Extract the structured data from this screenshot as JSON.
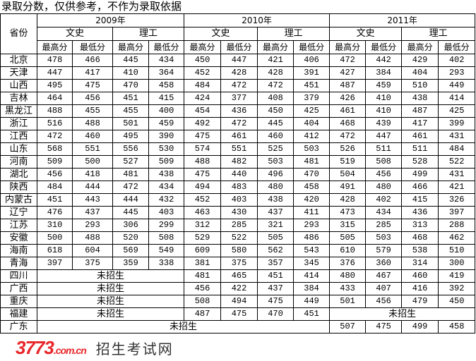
{
  "title": "录取分数，仅供参考，不作为录取依据",
  "header": {
    "province": "省份",
    "years": [
      "2009年",
      "2010年",
      "2011年"
    ],
    "tracks": [
      "文史",
      "理工"
    ],
    "scores": [
      "最高分",
      "最低分"
    ]
  },
  "not_enrolled": "未招生",
  "rows": [
    {
      "province": "北京",
      "values": [
        478,
        466,
        445,
        434,
        450,
        447,
        421,
        406,
        472,
        442,
        429,
        402
      ]
    },
    {
      "province": "天津",
      "values": [
        447,
        417,
        410,
        364,
        452,
        428,
        428,
        391,
        427,
        384,
        404,
        293
      ]
    },
    {
      "province": "山西",
      "values": [
        495,
        475,
        470,
        458,
        484,
        472,
        472,
        451,
        487,
        459,
        510,
        449
      ]
    },
    {
      "province": "吉林",
      "values": [
        464,
        456,
        451,
        415,
        424,
        377,
        408,
        379,
        426,
        410,
        438,
        414
      ]
    },
    {
      "province": "黑龙江",
      "values": [
        488,
        455,
        455,
        400,
        454,
        436,
        450,
        425,
        461,
        410,
        487,
        425
      ]
    },
    {
      "province": "浙江",
      "values": [
        516,
        488,
        501,
        459,
        492,
        472,
        445,
        404,
        468,
        439,
        417,
        399
      ]
    },
    {
      "province": "江西",
      "values": [
        472,
        460,
        495,
        390,
        475,
        461,
        460,
        412,
        472,
        447,
        461,
        431
      ]
    },
    {
      "province": "山东",
      "values": [
        568,
        551,
        556,
        530,
        574,
        551,
        525,
        503,
        526,
        511,
        511,
        484
      ]
    },
    {
      "province": "河南",
      "values": [
        509,
        500,
        527,
        509,
        488,
        482,
        503,
        481,
        519,
        508,
        528,
        522
      ]
    },
    {
      "province": "湖北",
      "values": [
        456,
        418,
        481,
        438,
        475,
        440,
        496,
        470,
        504,
        456,
        499,
        431
      ]
    },
    {
      "province": "陕西",
      "values": [
        484,
        444,
        472,
        434,
        494,
        483,
        480,
        458,
        491,
        480,
        466,
        421
      ]
    },
    {
      "province": "内蒙古",
      "values": [
        451,
        443,
        444,
        432,
        452,
        403,
        438,
        420,
        428,
        402,
        415,
        326
      ]
    },
    {
      "province": "辽宁",
      "values": [
        476,
        437,
        445,
        403,
        463,
        430,
        437,
        411,
        473,
        434,
        436,
        397
      ]
    },
    {
      "province": "江苏",
      "values": [
        310,
        293,
        306,
        299,
        312,
        285,
        321,
        293,
        315,
        285,
        313,
        288
      ]
    },
    {
      "province": "安徽",
      "values": [
        500,
        488,
        520,
        508,
        529,
        522,
        505,
        486,
        505,
        503,
        468,
        462
      ]
    },
    {
      "province": "海南",
      "values": [
        618,
        604,
        569,
        549,
        609,
        580,
        562,
        543,
        610,
        579,
        538,
        510
      ]
    },
    {
      "province": "青海",
      "values": [
        397,
        375,
        359,
        338,
        381,
        375,
        357,
        345,
        376,
        360,
        314,
        300
      ]
    },
    {
      "province": "四川",
      "values": [
        null,
        null,
        null,
        null,
        481,
        465,
        451,
        414,
        480,
        467,
        460,
        419
      ]
    },
    {
      "province": "广西",
      "values": [
        null,
        null,
        null,
        null,
        456,
        422,
        437,
        384,
        433,
        407,
        416,
        392
      ]
    },
    {
      "province": "重庆",
      "values": [
        null,
        null,
        null,
        null,
        508,
        494,
        475,
        449,
        501,
        456,
        479,
        450
      ]
    },
    {
      "province": "福建",
      "values": [
        null,
        null,
        null,
        null,
        487,
        475,
        470,
        451,
        null,
        null,
        null,
        null
      ]
    },
    {
      "province": "广东",
      "values": [
        null,
        null,
        null,
        null,
        null,
        null,
        null,
        null,
        507,
        475,
        499,
        458
      ]
    }
  ],
  "watermark": {
    "site": "3773",
    "domain": ".com.cn",
    "name": "招生考试网",
    "color": "#e8262a"
  }
}
